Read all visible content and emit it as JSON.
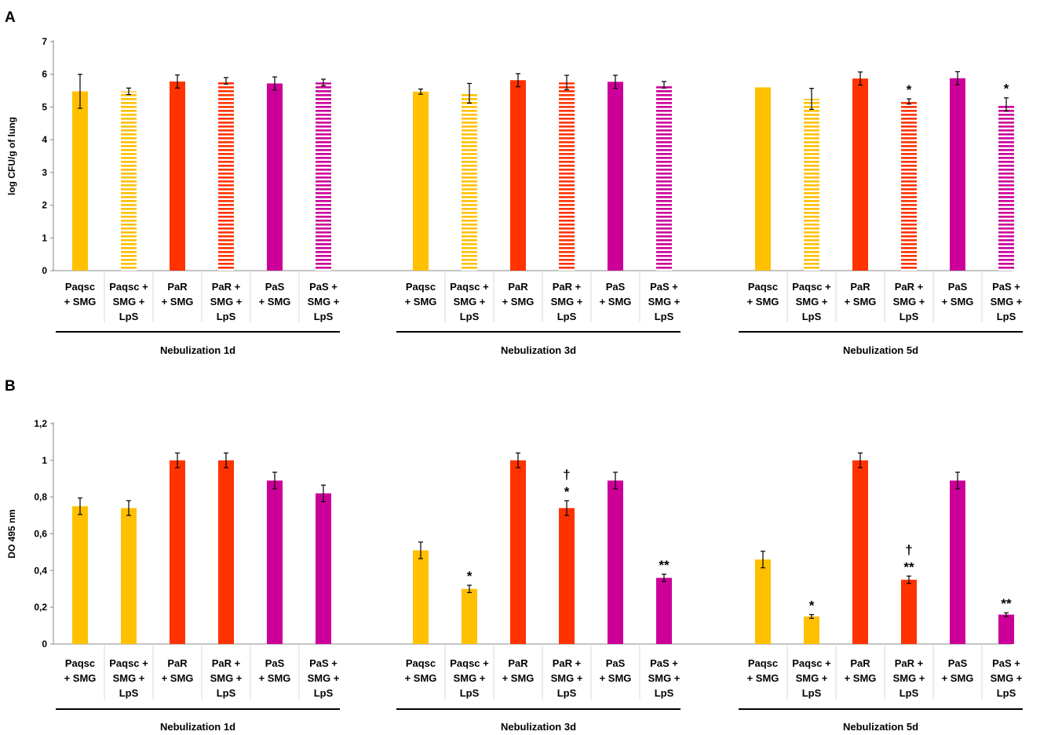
{
  "chart_data": [
    {
      "panel": "A",
      "type": "bar",
      "ylabel": "log CFU/g of lung",
      "ylim": [
        0,
        7
      ],
      "yticks": [
        "0",
        "1",
        "2",
        "3",
        "4",
        "5",
        "6",
        "7"
      ],
      "groups": [
        "Nebulization 1d",
        "Nebulization 3d",
        "Nebulization 5d"
      ],
      "categories": [
        [
          "Paqsc",
          "+ SMG"
        ],
        [
          "Paqsc +",
          "SMG +",
          "LpS"
        ],
        [
          "PaR",
          "+ SMG"
        ],
        [
          "PaR +",
          "SMG +",
          "LpS"
        ],
        [
          "PaS",
          "+ SMG"
        ],
        [
          "PaS +",
          "SMG +",
          "LpS"
        ]
      ],
      "bars": [
        [
          {
            "value": 5.48,
            "error": 0.52,
            "color": "#FFC000",
            "pattern": "solid",
            "annotation": []
          },
          {
            "value": 5.48,
            "error": 0.1,
            "color": "#FFC000",
            "pattern": "striped",
            "annotation": []
          },
          {
            "value": 5.78,
            "error": 0.2,
            "color": "#FF3300",
            "pattern": "solid",
            "annotation": []
          },
          {
            "value": 5.8,
            "error": 0.1,
            "color": "#FF3300",
            "pattern": "striped",
            "annotation": []
          },
          {
            "value": 5.72,
            "error": 0.2,
            "color": "#CC0099",
            "pattern": "solid",
            "annotation": []
          },
          {
            "value": 5.75,
            "error": 0.1,
            "color": "#CC0099",
            "pattern": "striped",
            "annotation": []
          }
        ],
        [
          {
            "value": 5.47,
            "error": 0.08,
            "color": "#FFC000",
            "pattern": "solid",
            "annotation": []
          },
          {
            "value": 5.42,
            "error": 0.3,
            "color": "#FFC000",
            "pattern": "striped",
            "annotation": []
          },
          {
            "value": 5.82,
            "error": 0.2,
            "color": "#FF3300",
            "pattern": "solid",
            "annotation": []
          },
          {
            "value": 5.75,
            "error": 0.22,
            "color": "#FF3300",
            "pattern": "striped",
            "annotation": []
          },
          {
            "value": 5.77,
            "error": 0.2,
            "color": "#CC0099",
            "pattern": "solid",
            "annotation": []
          },
          {
            "value": 5.68,
            "error": 0.1,
            "color": "#CC0099",
            "pattern": "striped",
            "annotation": []
          }
        ],
        [
          {
            "value": 5.6,
            "error": 0,
            "color": "#FFC000",
            "pattern": "solid",
            "annotation": []
          },
          {
            "value": 5.25,
            "error": 0.32,
            "color": "#FFC000",
            "pattern": "striped",
            "annotation": []
          },
          {
            "value": 5.87,
            "error": 0.2,
            "color": "#FF3300",
            "pattern": "solid",
            "annotation": []
          },
          {
            "value": 5.17,
            "error": 0.08,
            "color": "#FF3300",
            "pattern": "striped",
            "annotation": [
              "*"
            ]
          },
          {
            "value": 5.88,
            "error": 0.2,
            "color": "#CC0099",
            "pattern": "solid",
            "annotation": []
          },
          {
            "value": 5.08,
            "error": 0.2,
            "color": "#CC0099",
            "pattern": "striped",
            "annotation": [
              "*"
            ]
          }
        ]
      ]
    },
    {
      "panel": "B",
      "type": "bar",
      "ylabel": "DO 495 nm",
      "ylim": [
        0,
        1.2
      ],
      "yticks": [
        "0",
        "0,2",
        "0,4",
        "0,6",
        "0,8",
        "1",
        "1,2"
      ],
      "groups": [
        "Nebulization 1d",
        "Nebulization 3d",
        "Nebulization 5d"
      ],
      "categories": [
        [
          "Paqsc",
          "+ SMG"
        ],
        [
          "Paqsc +",
          "SMG +",
          "LpS"
        ],
        [
          "PaR",
          "+ SMG"
        ],
        [
          "PaR +",
          "SMG +",
          "LpS"
        ],
        [
          "PaS",
          "+ SMG"
        ],
        [
          "PaS +",
          "SMG +",
          "LpS"
        ]
      ],
      "bars": [
        [
          {
            "value": 0.75,
            "error": 0.045,
            "color": "#FFC000",
            "pattern": "solid",
            "annotation": []
          },
          {
            "value": 0.74,
            "error": 0.04,
            "color": "#FFC000",
            "pattern": "solid",
            "annotation": []
          },
          {
            "value": 1.0,
            "error": 0.04,
            "color": "#FF3300",
            "pattern": "solid",
            "annotation": []
          },
          {
            "value": 1.0,
            "error": 0.04,
            "color": "#FF3300",
            "pattern": "solid",
            "annotation": []
          },
          {
            "value": 0.89,
            "error": 0.045,
            "color": "#CC0099",
            "pattern": "solid",
            "annotation": []
          },
          {
            "value": 0.82,
            "error": 0.045,
            "color": "#CC0099",
            "pattern": "solid",
            "annotation": []
          }
        ],
        [
          {
            "value": 0.51,
            "error": 0.045,
            "color": "#FFC000",
            "pattern": "solid",
            "annotation": []
          },
          {
            "value": 0.3,
            "error": 0.02,
            "color": "#FFC000",
            "pattern": "solid",
            "annotation": [
              "*"
            ]
          },
          {
            "value": 1.0,
            "error": 0.04,
            "color": "#FF3300",
            "pattern": "solid",
            "annotation": []
          },
          {
            "value": 0.74,
            "error": 0.04,
            "color": "#FF3300",
            "pattern": "solid",
            "annotation": [
              "†",
              "*"
            ]
          },
          {
            "value": 0.89,
            "error": 0.045,
            "color": "#CC0099",
            "pattern": "solid",
            "annotation": []
          },
          {
            "value": 0.36,
            "error": 0.02,
            "color": "#CC0099",
            "pattern": "solid",
            "annotation": [
              "**"
            ]
          }
        ],
        [
          {
            "value": 0.46,
            "error": 0.045,
            "color": "#FFC000",
            "pattern": "solid",
            "annotation": []
          },
          {
            "value": 0.15,
            "error": 0.01,
            "color": "#FFC000",
            "pattern": "solid",
            "annotation": [
              "*"
            ]
          },
          {
            "value": 1.0,
            "error": 0.04,
            "color": "#FF3300",
            "pattern": "solid",
            "annotation": []
          },
          {
            "value": 0.35,
            "error": 0.02,
            "color": "#FF3300",
            "pattern": "solid",
            "annotation": [
              "†",
              "**"
            ]
          },
          {
            "value": 0.89,
            "error": 0.045,
            "color": "#CC0099",
            "pattern": "solid",
            "annotation": []
          },
          {
            "value": 0.16,
            "error": 0.01,
            "color": "#CC0099",
            "pattern": "solid",
            "annotation": [
              "**"
            ]
          }
        ]
      ]
    }
  ]
}
